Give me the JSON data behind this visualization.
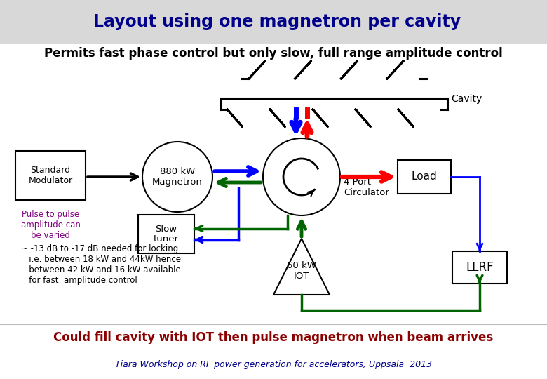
{
  "title": "Layout using one magnetron per cavity",
  "subtitle": "Permits fast phase control but only slow, full range amplitude control",
  "background_color": "#ffffff",
  "title_color": "#00008B",
  "bottom_text": "Could fill cavity with IOT then pulse magnetron when beam arrives",
  "footer_text": "Tiara Workshop on RF power generation for accelerators, Uppsala  2013",
  "annotation_text": "~ -13 dB to -17 dB needed for locking\n   i.e. between 18 kW and 44kW hence\n   between 42 kW and 16 kW available\n   for fast  amplitude control",
  "modulator_label": "Standard\nModulator",
  "pulse_label": "Pulse to pulse\namplitude can\nbe varied",
  "magnetron_label": "880 kW\nMagnetron",
  "slow_tuner_label": "Slow\ntuner",
  "circulator_label": "4 Port\nCirculator",
  "cavity_label": "Cavity",
  "load_label": "Load",
  "llrf_label": "LLRF",
  "iot_label": "60 kW\nIOT"
}
